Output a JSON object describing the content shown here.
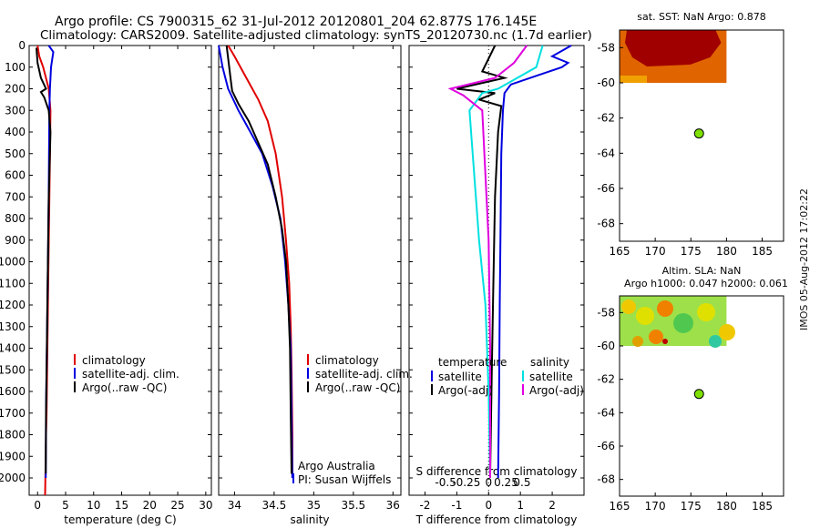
{
  "header": {
    "line1": "Argo profile: CS 7900315_62 31-Jul-2012 20120801_204 62.877S 176.145E",
    "line2": "Climatology: CARS2009. Satellite-adjusted climatology: synTS_20120730.nc (1.7d earlier)"
  },
  "side_label": "IMOS 05-Aug-2012 17:02:22",
  "colors": {
    "climatology": "#e00000",
    "satellite": "#0000e0",
    "argo": "#000000",
    "cyan": "#00e0e0",
    "magenta": "#e000e0",
    "float": "#7ee000"
  },
  "chart_data": [
    {
      "type": "line",
      "id": "temperature",
      "xlabel": "temperature (deg C)",
      "ylabel": "",
      "xlim": [
        -1.5,
        31
      ],
      "ylim": [
        2080,
        0
      ],
      "xticks": [
        0,
        5,
        10,
        15,
        20,
        25,
        30
      ],
      "yticks": [
        0,
        100,
        200,
        300,
        400,
        500,
        600,
        700,
        800,
        900,
        1000,
        1100,
        1200,
        1300,
        1400,
        1500,
        1600,
        1700,
        1800,
        1900,
        2000
      ],
      "legend": [
        "climatology",
        "satellite-adj. clim.",
        "Argo(..raw -QC)"
      ],
      "series": [
        {
          "name": "climatology",
          "color": "#e00000",
          "x": [
            0.0,
            0.3,
            1.0,
            2.0,
            2.3,
            2.25,
            2.2,
            2.1,
            2.0,
            1.9,
            1.8,
            1.7,
            1.6,
            1.5,
            1.45,
            1.4,
            1.35
          ],
          "y": [
            0,
            50,
            100,
            200,
            300,
            400,
            500,
            700,
            900,
            1100,
            1300,
            1500,
            1700,
            1800,
            1900,
            2000,
            2080
          ]
        },
        {
          "name": "satellite-adj. clim.",
          "color": "#0000e0",
          "x": [
            2.0,
            2.8,
            2.4,
            2.2,
            2.1,
            2.05,
            2.0,
            1.9,
            1.8,
            1.7,
            1.6,
            1.5,
            1.45
          ],
          "y": [
            0,
            30,
            100,
            200,
            300,
            500,
            700,
            900,
            1100,
            1300,
            1500,
            1700,
            2000
          ]
        },
        {
          "name": "Argo(..raw -QC)",
          "color": "#000000",
          "x": [
            -0.2,
            0.0,
            0.6,
            1.5,
            0.6,
            1.2,
            2.0,
            2.3,
            2.2,
            2.0,
            1.9,
            1.8,
            1.7,
            1.6,
            1.5,
            1.45
          ],
          "y": [
            10,
            80,
            150,
            200,
            215,
            240,
            300,
            400,
            500,
            700,
            900,
            1100,
            1300,
            1500,
            1700,
            1980
          ]
        }
      ]
    },
    {
      "type": "line",
      "id": "salinity",
      "xlabel": "salinity",
      "ylabel": "",
      "xlim": [
        33.8,
        36.1
      ],
      "ylim": [
        2080,
        0
      ],
      "xticks": [
        34,
        34.5,
        35,
        35.5,
        36
      ],
      "legend": [
        "climatology",
        "satellite-adj. clim.",
        "Argo(..raw -QC)"
      ],
      "annotations": [
        "Argo Australia",
        "PI: Susan Wijffels"
      ],
      "series": [
        {
          "name": "climatology",
          "color": "#e00000",
          "x": [
            33.92,
            34.0,
            34.15,
            34.3,
            34.42,
            34.52,
            34.6,
            34.65,
            34.69,
            34.71,
            34.72,
            34.73,
            34.73
          ],
          "y": [
            0,
            50,
            150,
            250,
            350,
            500,
            700,
            900,
            1100,
            1300,
            1500,
            1800,
            2000
          ]
        },
        {
          "name": "satellite-adj. clim.",
          "color": "#0000e0",
          "x": [
            33.8,
            33.85,
            33.92,
            34.05,
            34.2,
            34.35,
            34.48,
            34.58,
            34.64,
            34.68,
            34.71,
            34.72,
            34.73
          ],
          "y": [
            0,
            100,
            200,
            300,
            400,
            500,
            650,
            800,
            1000,
            1200,
            1400,
            1700,
            2000
          ]
        },
        {
          "name": "Argo(..raw -QC)",
          "color": "#000000",
          "x": [
            33.9,
            33.95,
            33.97,
            34.05,
            34.18,
            34.3,
            34.42,
            34.52,
            34.6,
            34.65,
            34.68,
            34.7,
            34.71,
            34.72
          ],
          "y": [
            0,
            150,
            210,
            270,
            350,
            450,
            550,
            700,
            850,
            1000,
            1200,
            1400,
            1700,
            1980
          ]
        }
      ]
    },
    {
      "type": "line",
      "id": "difference",
      "xlabel": "T difference from climatology",
      "xlabel2": "S difference from climatology",
      "xlim": [
        -2.5,
        3
      ],
      "xticks_T": [
        -2,
        -1,
        0,
        1,
        2
      ],
      "xticks_S": [
        "-0.5",
        "-0.25",
        "0",
        "0.25",
        "0.5"
      ],
      "legend_titles": [
        "temperature",
        "salinity"
      ],
      "legend": [
        "satellite",
        "Argo(-adj)",
        "satellite",
        "Argo(-adj)"
      ],
      "series": [
        {
          "name": "temperature satellite",
          "color": "#0000e0",
          "x": [
            2.6,
            2.0,
            2.5,
            2.3,
            1.5,
            0.7,
            0.5,
            0.45,
            0.4,
            0.38,
            0.35,
            0.33,
            0.3
          ],
          "y": [
            0,
            50,
            80,
            100,
            140,
            180,
            220,
            300,
            500,
            800,
            1200,
            1600,
            2000
          ]
        },
        {
          "name": "temperature Argo(-adj)",
          "color": "#000000",
          "x": [
            0.2,
            0.0,
            -0.2,
            0.5,
            -1.0,
            0.2,
            -0.3,
            0.4,
            0.3,
            0.2,
            0.15,
            0.1,
            0.05
          ],
          "y": [
            0,
            60,
            120,
            150,
            200,
            220,
            250,
            280,
            400,
            700,
            1100,
            1500,
            1980
          ]
        },
        {
          "name": "salinity satellite",
          "color": "#00e0e0",
          "x": [
            1.7,
            1.5,
            0.3,
            -0.2,
            -0.6,
            -0.5,
            -0.4,
            -0.3,
            -0.1,
            0.0,
            0.05
          ],
          "y": [
            0,
            100,
            200,
            220,
            300,
            500,
            700,
            900,
            1200,
            1600,
            2000
          ]
        },
        {
          "name": "salinity Argo(-adj)",
          "color": "#e000e0",
          "x": [
            1.2,
            0.8,
            0.2,
            -1.2,
            -0.8,
            -0.2,
            -0.1,
            0.0,
            0.05,
            0.05
          ],
          "y": [
            0,
            80,
            150,
            200,
            230,
            300,
            600,
            900,
            1400,
            2000
          ]
        }
      ]
    }
  ],
  "maps": [
    {
      "id": "sst",
      "title": "sat. SST: NaN Argo: 0.878",
      "title2": "",
      "xticks": [
        165,
        170,
        175,
        180,
        185
      ],
      "yticks": [
        -58,
        -60,
        -62,
        -64,
        -66,
        -68
      ],
      "float_lon": 176.145,
      "float_lat": -62.877
    },
    {
      "id": "sla",
      "title": "Altim. SLA: NaN",
      "title2": "Argo h1000: 0.047 h2000: 0.061",
      "xticks": [
        165,
        170,
        175,
        180,
        185
      ],
      "yticks": [
        -58,
        -60,
        -62,
        -64,
        -66,
        -68
      ],
      "float_lon": 176.145,
      "float_lat": -62.877
    }
  ]
}
